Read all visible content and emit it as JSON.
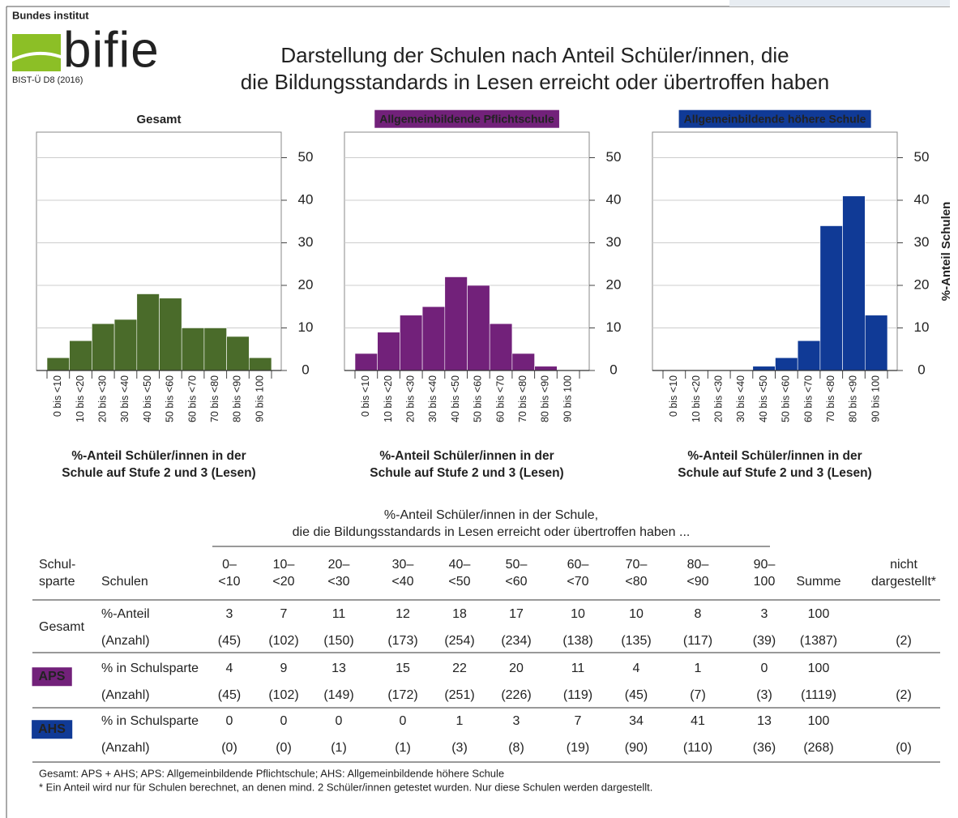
{
  "logo": {
    "top": "Bundes institut",
    "name": "bifie",
    "code": "BIST-Ü D8 (2016)"
  },
  "title": [
    "Darstellung der Schulen nach Anteil Schüler/innen, die",
    "die Bildungsstandards in Lesen erreicht oder übertroffen haben"
  ],
  "chart_data": [
    {
      "type": "bar",
      "title": "Gesamt",
      "categories": [
        "0 bis <10",
        "10 bis <20",
        "20 bis <30",
        "30 bis <40",
        "40 bis <50",
        "50 bis <60",
        "60 bis <70",
        "70 bis <80",
        "80 bis <90",
        "90 bis 100"
      ],
      "values": [
        3,
        7,
        11,
        12,
        18,
        17,
        10,
        10,
        8,
        3
      ],
      "color": "#4a6b2a",
      "ylim": [
        0,
        56
      ],
      "yticks": [
        0,
        10,
        20,
        30,
        40,
        50
      ],
      "grid": true,
      "xlabel": [
        "%-Anteil Schüler/innen in der",
        "Schule auf Stufe 2 und 3 (Lesen)"
      ]
    },
    {
      "type": "bar",
      "title": "Allgemeinbildende Pflichtschule",
      "title_color": "#72217a",
      "categories": [
        "0 bis <10",
        "10 bis <20",
        "20 bis <30",
        "30 bis <40",
        "40 bis <50",
        "50 bis <60",
        "60 bis <70",
        "70 bis <80",
        "80 bis <90",
        "90 bis 100"
      ],
      "values": [
        4,
        9,
        13,
        15,
        22,
        20,
        11,
        4,
        1,
        0
      ],
      "color": "#72217a",
      "ylim": [
        0,
        56
      ],
      "yticks": [
        0,
        10,
        20,
        30,
        40,
        50
      ],
      "grid": true,
      "xlabel": [
        "%-Anteil Schüler/innen in der",
        "Schule auf Stufe 2 und 3 (Lesen)"
      ]
    },
    {
      "type": "bar",
      "title": "Allgemeinbildende höhere Schule",
      "title_color": "#103a96",
      "categories": [
        "0 bis <10",
        "10 bis <20",
        "20 bis <30",
        "30 bis <40",
        "40 bis <50",
        "50 bis <60",
        "60 bis <70",
        "70 bis <80",
        "80 bis <90",
        "90 bis 100"
      ],
      "values": [
        0,
        0,
        0,
        0,
        1,
        3,
        7,
        34,
        41,
        13
      ],
      "color": "#103a96",
      "ylim": [
        0,
        56
      ],
      "yticks": [
        0,
        10,
        20,
        30,
        40,
        50
      ],
      "grid": true,
      "xlabel": [
        "%-Anteil Schüler/innen in der",
        "Schule auf Stufe 2 und 3 (Lesen)"
      ],
      "ylabel": "%-Anteil Schulen"
    }
  ],
  "table": {
    "caption": [
      "%-Anteil Schüler/innen in der Schule,",
      "die die Bildungsstandards in Lesen erreicht oder übertroffen haben ..."
    ],
    "columns": [
      [
        "Schul-",
        "sparte"
      ],
      [
        "Schulen"
      ],
      [
        "0–",
        "<10"
      ],
      [
        "10–",
        "<20"
      ],
      [
        "20–",
        "<30"
      ],
      [
        "30–",
        "<40"
      ],
      [
        "40–",
        "<50"
      ],
      [
        "50–",
        "<60"
      ],
      [
        "60–",
        "<70"
      ],
      [
        "70–",
        "<80"
      ],
      [
        "80–",
        "<90"
      ],
      [
        "90–",
        "100"
      ],
      [
        "Summe"
      ],
      [
        "nicht",
        "dargestellt*"
      ]
    ],
    "groups": [
      {
        "label": "Gesamt",
        "rows": [
          {
            "label": "%-Anteil",
            "cells": [
              "3",
              "7",
              "11",
              "12",
              "18",
              "17",
              "10",
              "10",
              "8",
              "3",
              "100"
            ]
          },
          {
            "label": "(Anzahl)",
            "cells": [
              "(45)",
              "(102)",
              "(150)",
              "(173)",
              "(254)",
              "(234)",
              "(138)",
              "(135)",
              "(117)",
              "(39)",
              "(1387)"
            ],
            "note": "(2)"
          }
        ]
      },
      {
        "label": "APS",
        "color": "#72217a",
        "rows": [
          {
            "label": "% in Schulsparte",
            "cells": [
              "4",
              "9",
              "13",
              "15",
              "22",
              "20",
              "11",
              "4",
              "1",
              "0",
              "100"
            ]
          },
          {
            "label": "(Anzahl)",
            "cells": [
              "(45)",
              "(102)",
              "(149)",
              "(172)",
              "(251)",
              "(226)",
              "(119)",
              "(45)",
              "(7)",
              "(3)",
              "(1119)"
            ],
            "note": "(2)"
          }
        ]
      },
      {
        "label": "AHS",
        "color": "#103a96",
        "rows": [
          {
            "label": "% in Schulsparte",
            "cells": [
              "0",
              "0",
              "0",
              "0",
              "1",
              "3",
              "7",
              "34",
              "41",
              "13",
              "100"
            ]
          },
          {
            "label": "(Anzahl)",
            "cells": [
              "(0)",
              "(0)",
              "(1)",
              "(1)",
              "(3)",
              "(8)",
              "(19)",
              "(90)",
              "(110)",
              "(36)",
              "(268)"
            ],
            "note": "(0)"
          }
        ]
      }
    ]
  },
  "footnotes": [
    "Gesamt: APS + AHS; APS: Allgemeinbildende Pflichtschule; AHS: Allgemeinbildende höhere Schule",
    "* Ein Anteil wird nur für Schulen berechnet, an denen mind. 2 Schüler/innen getestet wurden. Nur diese Schulen werden dargestellt."
  ]
}
